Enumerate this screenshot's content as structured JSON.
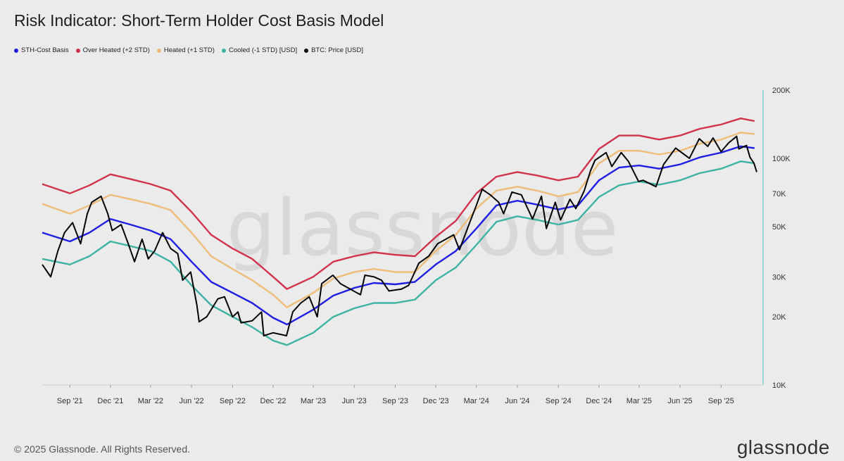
{
  "header": {
    "title": "Risk Indicator: Short-Term Holder Cost Basis Model"
  },
  "legend": [
    {
      "label": "STH-Cost Basis",
      "color": "#1f1fe6"
    },
    {
      "label": "Over Heated (+2 STD)",
      "color": "#d1334a"
    },
    {
      "label": "Heated (+1 STD)",
      "color": "#efbd79"
    },
    {
      "label": "Cooled (-1 STD) [USD]",
      "color": "#3fb3a3"
    },
    {
      "label": "BTC: Price [USD]",
      "color": "#000000"
    }
  ],
  "footer": {
    "copyright": "© 2025 Glassnode. All Rights Reserved.",
    "brand": "glassnode"
  },
  "watermark": "glassnode",
  "chart_data": {
    "type": "line",
    "title": "Risk Indicator: Short-Term Holder Cost Basis Model",
    "y_scale": "log",
    "ylim": [
      10000,
      200000
    ],
    "y_ticks": [
      {
        "value": 200000,
        "label": "200K"
      },
      {
        "value": 100000,
        "label": "100K"
      },
      {
        "value": 70000,
        "label": "70K"
      },
      {
        "value": 50000,
        "label": "50K"
      },
      {
        "value": 30000,
        "label": "30K"
      },
      {
        "value": 20000,
        "label": "20K"
      },
      {
        "value": 10000,
        "label": "10K"
      }
    ],
    "x_range": [
      "2021-07-01",
      "2025-12-01"
    ],
    "x_ticks": [
      {
        "date": "2021-09-01",
        "label": "Sep '21"
      },
      {
        "date": "2021-12-01",
        "label": "Dec '21"
      },
      {
        "date": "2022-03-01",
        "label": "Mar '22"
      },
      {
        "date": "2022-06-01",
        "label": "Jun '22"
      },
      {
        "date": "2022-09-01",
        "label": "Sep '22"
      },
      {
        "date": "2022-12-01",
        "label": "Dec '22"
      },
      {
        "date": "2023-03-01",
        "label": "Mar '23"
      },
      {
        "date": "2023-06-01",
        "label": "Jun '23"
      },
      {
        "date": "2023-09-01",
        "label": "Sep '23"
      },
      {
        "date": "2023-12-01",
        "label": "Dec '23"
      },
      {
        "date": "2024-03-01",
        "label": "Mar '24"
      },
      {
        "date": "2024-06-01",
        "label": "Jun '24"
      },
      {
        "date": "2024-09-01",
        "label": "Sep '24"
      },
      {
        "date": "2024-12-01",
        "label": "Dec '24"
      },
      {
        "date": "2025-03-01",
        "label": "Mar '25"
      },
      {
        "date": "2025-06-01",
        "label": "Jun '25"
      },
      {
        "date": "2025-09-01",
        "label": "Sep '25"
      }
    ],
    "series": [
      {
        "name": "Over Heated (+2 STD)",
        "color": "#d1334a",
        "points": [
          [
            "2021-07-01",
            77000
          ],
          [
            "2021-09-01",
            70000
          ],
          [
            "2021-10-15",
            76000
          ],
          [
            "2021-12-01",
            85000
          ],
          [
            "2022-01-15",
            81000
          ],
          [
            "2022-03-01",
            77000
          ],
          [
            "2022-04-15",
            72000
          ],
          [
            "2022-06-01",
            58000
          ],
          [
            "2022-07-15",
            46000
          ],
          [
            "2022-09-01",
            40000
          ],
          [
            "2022-10-15",
            36000
          ],
          [
            "2022-12-01",
            30000
          ],
          [
            "2023-01-01",
            26500
          ],
          [
            "2023-03-01",
            30000
          ],
          [
            "2023-04-15",
            35000
          ],
          [
            "2023-06-01",
            37000
          ],
          [
            "2023-07-15",
            38500
          ],
          [
            "2023-09-01",
            37500
          ],
          [
            "2023-10-15",
            37000
          ],
          [
            "2023-12-01",
            45000
          ],
          [
            "2024-01-15",
            53000
          ],
          [
            "2024-03-01",
            70000
          ],
          [
            "2024-04-15",
            83000
          ],
          [
            "2024-06-01",
            87000
          ],
          [
            "2024-07-15",
            84000
          ],
          [
            "2024-09-01",
            80000
          ],
          [
            "2024-10-15",
            83000
          ],
          [
            "2024-12-01",
            110000
          ],
          [
            "2025-01-15",
            126000
          ],
          [
            "2025-03-01",
            126000
          ],
          [
            "2025-04-15",
            121000
          ],
          [
            "2025-06-01",
            126000
          ],
          [
            "2025-07-15",
            135000
          ],
          [
            "2025-09-01",
            141000
          ],
          [
            "2025-10-15",
            150000
          ],
          [
            "2025-11-15",
            146000
          ]
        ]
      },
      {
        "name": "Heated (+1 STD)",
        "color": "#efbd79",
        "points": [
          [
            "2021-07-01",
            63000
          ],
          [
            "2021-09-01",
            57000
          ],
          [
            "2021-10-15",
            62000
          ],
          [
            "2021-12-01",
            69000
          ],
          [
            "2022-01-15",
            66000
          ],
          [
            "2022-03-01",
            63000
          ],
          [
            "2022-04-15",
            59000
          ],
          [
            "2022-06-01",
            47000
          ],
          [
            "2022-07-15",
            37000
          ],
          [
            "2022-09-01",
            32500
          ],
          [
            "2022-10-15",
            29000
          ],
          [
            "2022-12-01",
            25000
          ],
          [
            "2023-01-01",
            22000
          ],
          [
            "2023-03-01",
            25500
          ],
          [
            "2023-04-15",
            29500
          ],
          [
            "2023-06-01",
            31500
          ],
          [
            "2023-07-15",
            32500
          ],
          [
            "2023-09-01",
            31500
          ],
          [
            "2023-10-15",
            31500
          ],
          [
            "2023-12-01",
            39000
          ],
          [
            "2024-01-15",
            46000
          ],
          [
            "2024-03-01",
            60000
          ],
          [
            "2024-04-15",
            72000
          ],
          [
            "2024-06-01",
            75000
          ],
          [
            "2024-07-15",
            72000
          ],
          [
            "2024-09-01",
            68000
          ],
          [
            "2024-10-15",
            71000
          ],
          [
            "2024-12-01",
            95000
          ],
          [
            "2025-01-15",
            108000
          ],
          [
            "2025-03-01",
            108000
          ],
          [
            "2025-04-15",
            104000
          ],
          [
            "2025-06-01",
            108000
          ],
          [
            "2025-07-15",
            116000
          ],
          [
            "2025-09-01",
            121000
          ],
          [
            "2025-10-15",
            130000
          ],
          [
            "2025-11-15",
            128000
          ]
        ]
      },
      {
        "name": "STH-Cost Basis",
        "color": "#1f1fe6",
        "points": [
          [
            "2021-07-01",
            47000
          ],
          [
            "2021-09-01",
            43000
          ],
          [
            "2021-10-15",
            47000
          ],
          [
            "2021-12-01",
            54000
          ],
          [
            "2022-01-15",
            51000
          ],
          [
            "2022-03-01",
            48000
          ],
          [
            "2022-04-15",
            44000
          ],
          [
            "2022-06-01",
            35000
          ],
          [
            "2022-07-15",
            28500
          ],
          [
            "2022-09-01",
            25500
          ],
          [
            "2022-10-15",
            23000
          ],
          [
            "2022-12-01",
            19800
          ],
          [
            "2023-01-01",
            18500
          ],
          [
            "2023-03-01",
            21500
          ],
          [
            "2023-04-15",
            24800
          ],
          [
            "2023-06-01",
            26800
          ],
          [
            "2023-07-15",
            28200
          ],
          [
            "2023-09-01",
            27800
          ],
          [
            "2023-10-15",
            28500
          ],
          [
            "2023-12-01",
            34000
          ],
          [
            "2024-01-15",
            39000
          ],
          [
            "2024-03-01",
            49000
          ],
          [
            "2024-04-15",
            62000
          ],
          [
            "2024-06-01",
            65000
          ],
          [
            "2024-07-15",
            62500
          ],
          [
            "2024-09-01",
            59500
          ],
          [
            "2024-10-15",
            62000
          ],
          [
            "2024-12-01",
            80000
          ],
          [
            "2025-01-15",
            91000
          ],
          [
            "2025-03-01",
            93000
          ],
          [
            "2025-04-15",
            90000
          ],
          [
            "2025-06-01",
            94000
          ],
          [
            "2025-07-15",
            101000
          ],
          [
            "2025-09-01",
            106000
          ],
          [
            "2025-10-15",
            113000
          ],
          [
            "2025-11-15",
            111000
          ]
        ]
      },
      {
        "name": "Cooled (-1 STD) [USD]",
        "color": "#3fb3a3",
        "points": [
          [
            "2021-07-01",
            36000
          ],
          [
            "2021-09-01",
            34000
          ],
          [
            "2021-10-15",
            37000
          ],
          [
            "2021-12-01",
            43000
          ],
          [
            "2022-01-15",
            41000
          ],
          [
            "2022-03-01",
            39000
          ],
          [
            "2022-04-15",
            35000
          ],
          [
            "2022-06-01",
            27500
          ],
          [
            "2022-07-15",
            22500
          ],
          [
            "2022-09-01",
            20000
          ],
          [
            "2022-10-15",
            18000
          ],
          [
            "2022-12-01",
            15700
          ],
          [
            "2023-01-01",
            15000
          ],
          [
            "2023-03-01",
            17000
          ],
          [
            "2023-04-15",
            20000
          ],
          [
            "2023-06-01",
            21800
          ],
          [
            "2023-07-15",
            23000
          ],
          [
            "2023-09-01",
            23000
          ],
          [
            "2023-10-15",
            23800
          ],
          [
            "2023-12-01",
            29000
          ],
          [
            "2024-01-15",
            33000
          ],
          [
            "2024-03-01",
            41500
          ],
          [
            "2024-04-15",
            52500
          ],
          [
            "2024-06-01",
            55500
          ],
          [
            "2024-07-15",
            53500
          ],
          [
            "2024-09-01",
            51000
          ],
          [
            "2024-10-15",
            53500
          ],
          [
            "2024-12-01",
            67500
          ],
          [
            "2025-01-15",
            76000
          ],
          [
            "2025-03-01",
            79000
          ],
          [
            "2025-04-15",
            76500
          ],
          [
            "2025-06-01",
            80000
          ],
          [
            "2025-07-15",
            86000
          ],
          [
            "2025-09-01",
            90000
          ],
          [
            "2025-10-15",
            97000
          ],
          [
            "2025-11-15",
            95000
          ]
        ]
      },
      {
        "name": "BTC: Price [USD]",
        "color": "#000000",
        "points": [
          [
            "2021-07-01",
            34000
          ],
          [
            "2021-07-20",
            30000
          ],
          [
            "2021-08-05",
            39000
          ],
          [
            "2021-08-20",
            47000
          ],
          [
            "2021-09-07",
            52000
          ],
          [
            "2021-09-25",
            42000
          ],
          [
            "2021-10-10",
            57000
          ],
          [
            "2021-10-20",
            64000
          ],
          [
            "2021-11-10",
            68000
          ],
          [
            "2021-11-25",
            57000
          ],
          [
            "2021-12-05",
            48000
          ],
          [
            "2021-12-25",
            51000
          ],
          [
            "2022-01-10",
            42000
          ],
          [
            "2022-01-24",
            35000
          ],
          [
            "2022-02-10",
            44000
          ],
          [
            "2022-02-24",
            36000
          ],
          [
            "2022-03-10",
            39000
          ],
          [
            "2022-03-28",
            47000
          ],
          [
            "2022-04-15",
            40000
          ],
          [
            "2022-05-01",
            38000
          ],
          [
            "2022-05-12",
            29000
          ],
          [
            "2022-05-30",
            31500
          ],
          [
            "2022-06-13",
            22500
          ],
          [
            "2022-06-18",
            19000
          ],
          [
            "2022-07-05",
            20000
          ],
          [
            "2022-07-30",
            24000
          ],
          [
            "2022-08-14",
            24500
          ],
          [
            "2022-09-01",
            20000
          ],
          [
            "2022-09-13",
            21000
          ],
          [
            "2022-09-20",
            18800
          ],
          [
            "2022-10-15",
            19200
          ],
          [
            "2022-11-05",
            21000
          ],
          [
            "2022-11-10",
            16500
          ],
          [
            "2022-12-01",
            17000
          ],
          [
            "2022-12-31",
            16500
          ],
          [
            "2023-01-14",
            21000
          ],
          [
            "2023-02-01",
            23000
          ],
          [
            "2023-02-20",
            24500
          ],
          [
            "2023-03-10",
            20000
          ],
          [
            "2023-03-20",
            28000
          ],
          [
            "2023-04-14",
            30500
          ],
          [
            "2023-05-01",
            28000
          ],
          [
            "2023-06-15",
            25000
          ],
          [
            "2023-06-25",
            30500
          ],
          [
            "2023-07-15",
            30000
          ],
          [
            "2023-08-01",
            29000
          ],
          [
            "2023-08-18",
            26000
          ],
          [
            "2023-09-15",
            26500
          ],
          [
            "2023-10-01",
            27500
          ],
          [
            "2023-10-24",
            34500
          ],
          [
            "2023-11-15",
            37000
          ],
          [
            "2023-12-05",
            42000
          ],
          [
            "2024-01-10",
            46000
          ],
          [
            "2024-01-23",
            39500
          ],
          [
            "2024-02-15",
            52000
          ],
          [
            "2024-03-01",
            62000
          ],
          [
            "2024-03-14",
            73000
          ],
          [
            "2024-04-01",
            69000
          ],
          [
            "2024-04-20",
            64000
          ],
          [
            "2024-05-01",
            57000
          ],
          [
            "2024-05-20",
            71000
          ],
          [
            "2024-06-10",
            69000
          ],
          [
            "2024-07-05",
            54000
          ],
          [
            "2024-07-25",
            68000
          ],
          [
            "2024-08-05",
            49000
          ],
          [
            "2024-08-25",
            64000
          ],
          [
            "2024-09-06",
            53500
          ],
          [
            "2024-09-27",
            66000
          ],
          [
            "2024-10-10",
            60000
          ],
          [
            "2024-10-29",
            72000
          ],
          [
            "2024-11-12",
            88000
          ],
          [
            "2024-11-22",
            98000
          ],
          [
            "2024-12-17",
            106000
          ],
          [
            "2024-12-30",
            92000
          ],
          [
            "2025-01-20",
            106000
          ],
          [
            "2025-02-05",
            97000
          ],
          [
            "2025-02-28",
            79000
          ],
          [
            "2025-03-10",
            80000
          ],
          [
            "2025-04-08",
            75000
          ],
          [
            "2025-04-25",
            94000
          ],
          [
            "2025-05-22",
            111000
          ],
          [
            "2025-06-22",
            100000
          ],
          [
            "2025-07-14",
            122000
          ],
          [
            "2025-08-02",
            113000
          ],
          [
            "2025-08-14",
            123000
          ],
          [
            "2025-09-01",
            107000
          ],
          [
            "2025-09-18",
            117000
          ],
          [
            "2025-10-06",
            125000
          ],
          [
            "2025-10-11",
            110000
          ],
          [
            "2025-10-28",
            114000
          ],
          [
            "2025-11-05",
            101000
          ],
          [
            "2025-11-14",
            95000
          ],
          [
            "2025-11-20",
            87000
          ]
        ]
      }
    ]
  }
}
